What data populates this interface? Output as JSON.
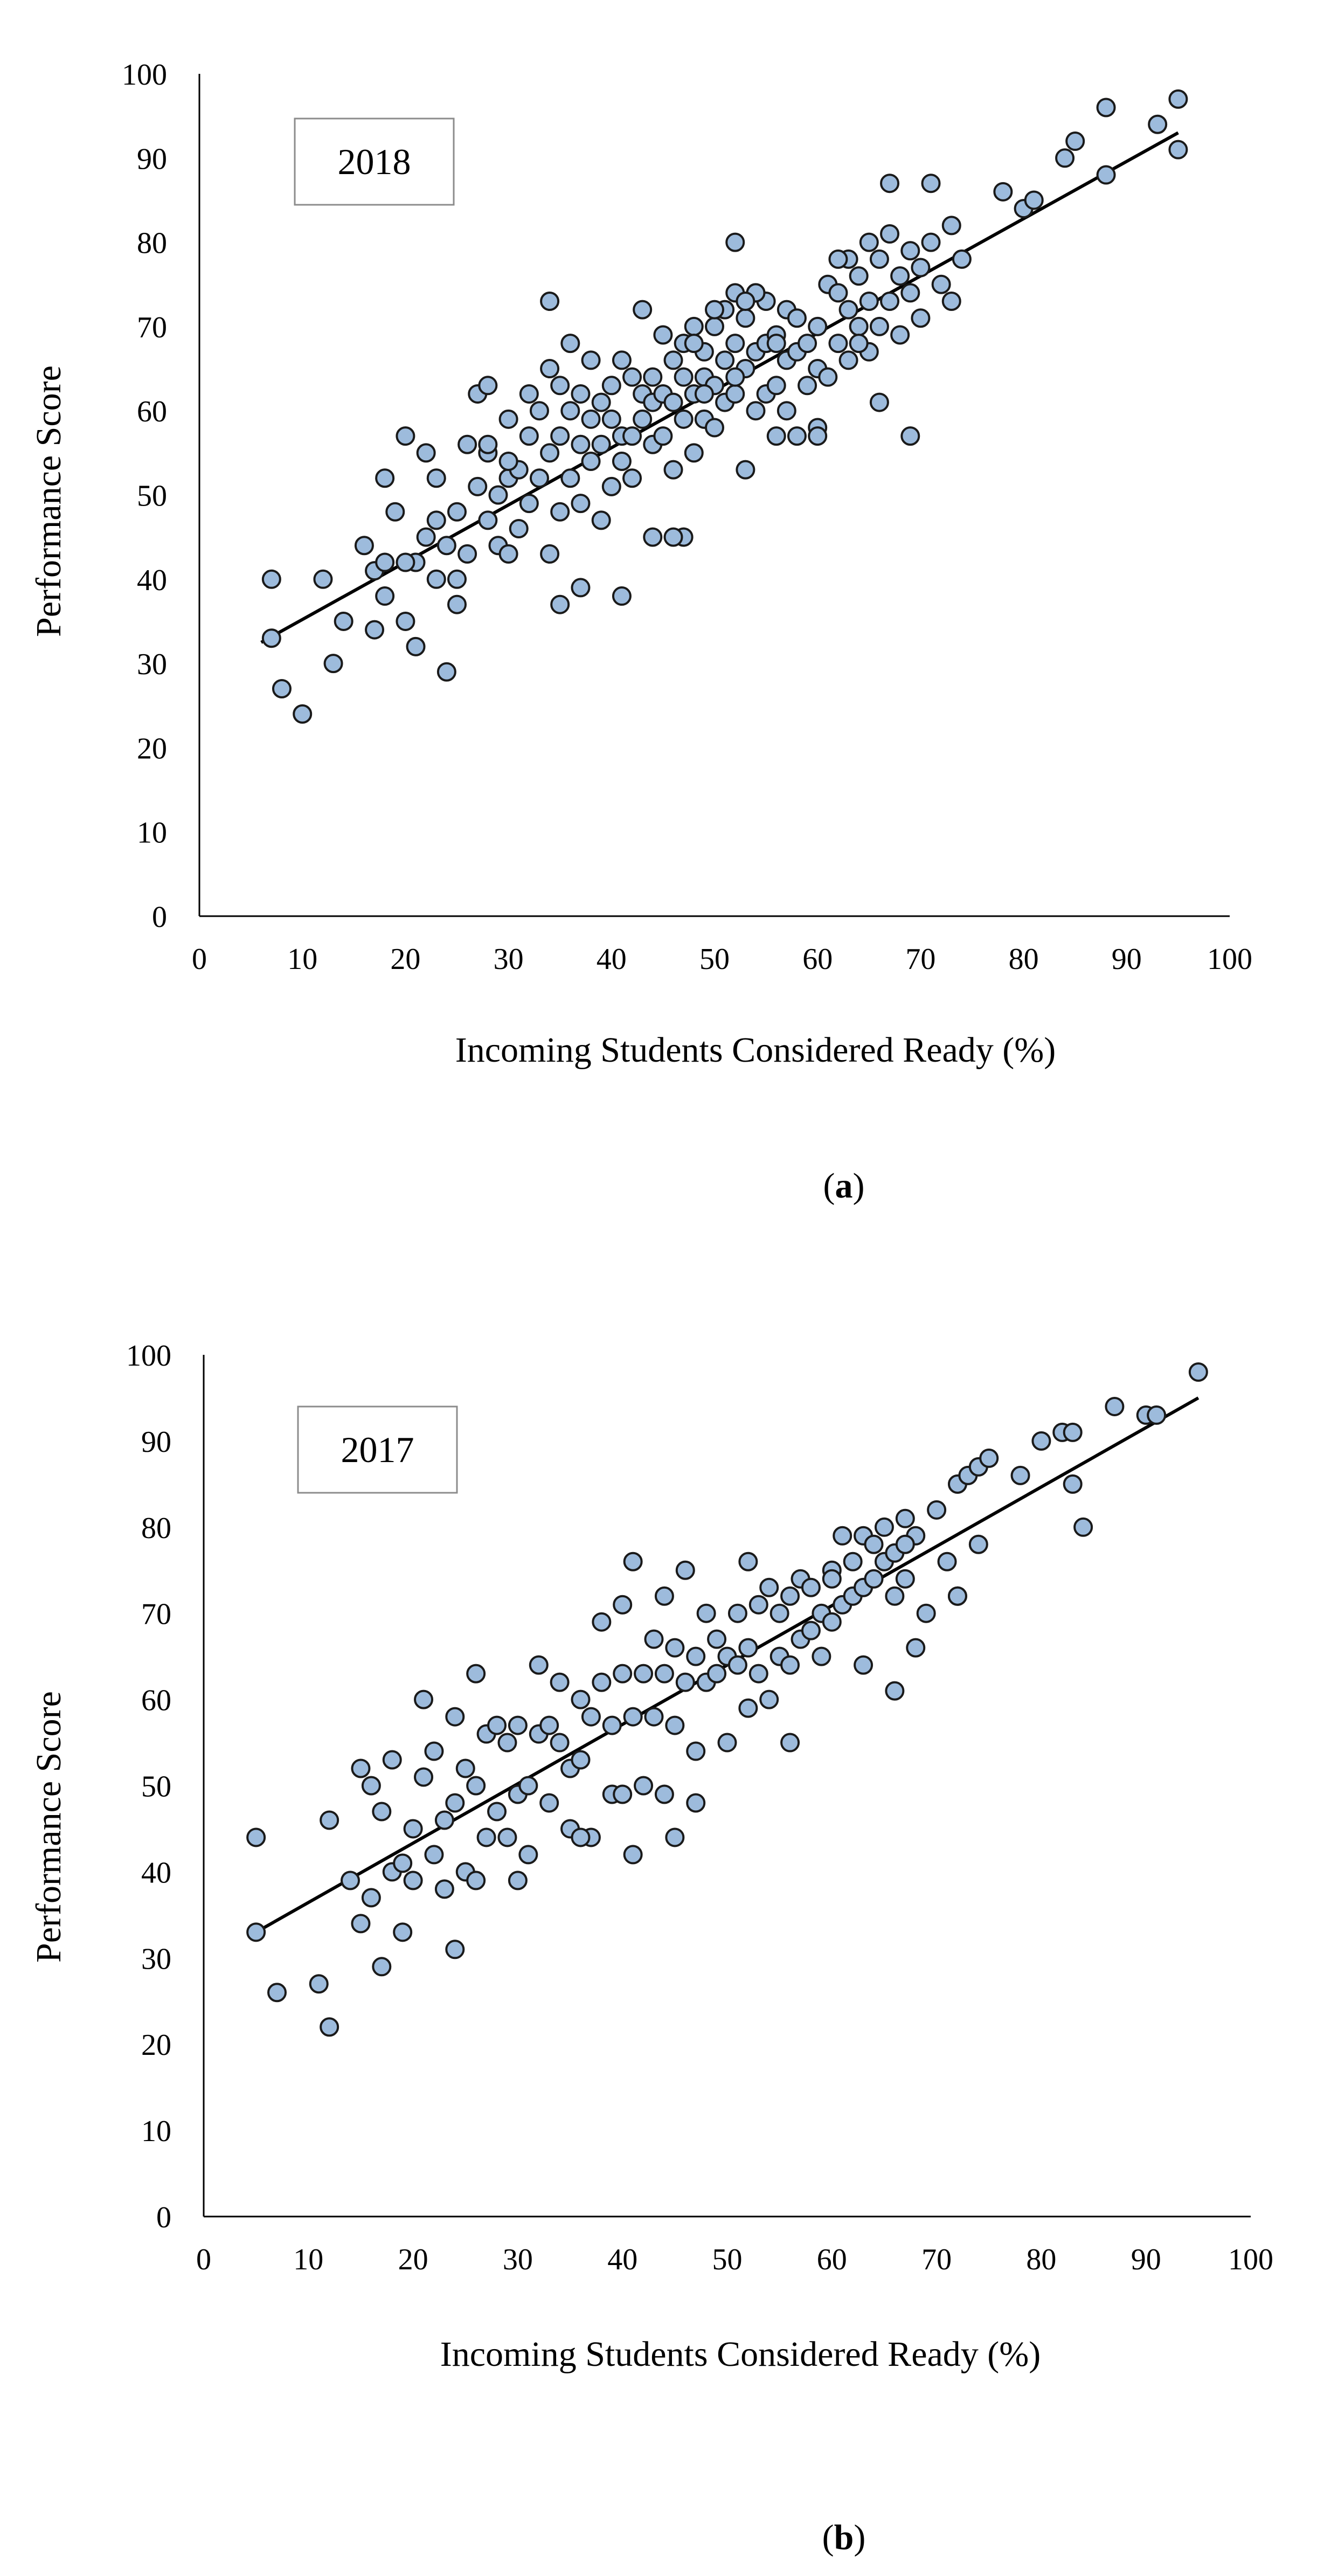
{
  "chart_data": [
    {
      "type": "scatter",
      "panel_label": "a",
      "year_label": "2018",
      "xlabel": "Incoming Students Considered Ready (%)",
      "ylabel": "Performance Score",
      "xlim": [
        0,
        100
      ],
      "ylim": [
        0,
        100
      ],
      "xticks": [
        0,
        10,
        20,
        30,
        40,
        50,
        60,
        70,
        80,
        90,
        100
      ],
      "yticks": [
        0,
        10,
        20,
        30,
        40,
        50,
        60,
        70,
        80,
        90,
        100
      ],
      "trendline": {
        "x": [
          6,
          95
        ],
        "y": [
          32.5,
          93
        ]
      },
      "points": {
        "x": [
          7,
          7,
          8,
          10,
          12,
          13,
          14,
          16,
          17,
          17,
          18,
          18,
          19,
          20,
          20,
          21,
          21,
          22,
          22,
          23,
          23,
          23,
          24,
          24,
          25,
          25,
          25,
          26,
          26,
          27,
          27,
          28,
          28,
          28,
          29,
          29,
          30,
          30,
          30,
          31,
          31,
          32,
          32,
          32,
          33,
          33,
          34,
          34,
          34,
          35,
          35,
          35,
          36,
          36,
          36,
          37,
          37,
          37,
          38,
          38,
          38,
          39,
          39,
          39,
          40,
          40,
          40,
          41,
          41,
          41,
          42,
          42,
          42,
          43,
          43,
          44,
          44,
          44,
          45,
          45,
          45,
          46,
          46,
          46,
          47,
          47,
          47,
          48,
          48,
          48,
          49,
          49,
          49,
          50,
          50,
          50,
          51,
          51,
          51,
          52,
          52,
          52,
          53,
          53,
          54,
          54,
          54,
          55,
          55,
          55,
          56,
          56,
          56,
          57,
          57,
          57,
          58,
          58,
          59,
          59,
          60,
          60,
          60,
          61,
          61,
          62,
          62,
          63,
          63,
          63,
          64,
          64,
          65,
          65,
          65,
          66,
          66,
          67,
          67,
          68,
          68,
          69,
          69,
          70,
          70,
          71,
          72,
          73,
          73,
          74,
          78,
          80,
          81,
          84,
          85,
          88,
          88,
          93,
          95,
          95,
          35,
          41,
          34,
          37,
          20,
          18,
          44,
          47,
          62,
          60,
          58,
          66,
          67,
          71,
          54,
          52,
          30,
          28,
          43,
          46,
          53,
          49,
          56,
          64,
          69,
          48,
          50,
          53,
          52
        ],
        "y": [
          33,
          40,
          27,
          24,
          40,
          30,
          35,
          44,
          34,
          41,
          38,
          52,
          48,
          35,
          57,
          32,
          42,
          55,
          45,
          52,
          40,
          47,
          29,
          44,
          40,
          48,
          37,
          43,
          56,
          51,
          62,
          47,
          55,
          63,
          50,
          44,
          59,
          52,
          43,
          53,
          46,
          57,
          62,
          49,
          60,
          52,
          65,
          73,
          55,
          63,
          48,
          57,
          68,
          52,
          60,
          56,
          49,
          62,
          59,
          54,
          66,
          47,
          61,
          56,
          51,
          59,
          63,
          57,
          54,
          66,
          64,
          57,
          52,
          59,
          62,
          61,
          56,
          64,
          57,
          62,
          69,
          53,
          61,
          66,
          59,
          64,
          68,
          55,
          62,
          70,
          59,
          64,
          67,
          58,
          63,
          70,
          61,
          66,
          72,
          62,
          68,
          74,
          65,
          71,
          60,
          67,
          74,
          62,
          68,
          73,
          63,
          69,
          57,
          66,
          72,
          60,
          67,
          71,
          63,
          68,
          58,
          65,
          70,
          64,
          75,
          68,
          74,
          66,
          72,
          78,
          70,
          76,
          67,
          73,
          80,
          70,
          78,
          73,
          81,
          69,
          76,
          74,
          79,
          71,
          77,
          80,
          75,
          73,
          82,
          78,
          86,
          84,
          85,
          90,
          92,
          88,
          96,
          94,
          91,
          97,
          37,
          38,
          43,
          39,
          42,
          42,
          45,
          45,
          78,
          57,
          57,
          61,
          87,
          87,
          74,
          80,
          54,
          56,
          72,
          45,
          53,
          62,
          68,
          68,
          57,
          68,
          72,
          73,
          64
        ]
      }
    },
    {
      "type": "scatter",
      "panel_label": "b",
      "year_label": "2017",
      "xlabel": "Incoming Students Considered Ready (%)",
      "ylabel": "Performance Score",
      "xlim": [
        0,
        100
      ],
      "ylim": [
        0,
        100
      ],
      "xticks": [
        0,
        10,
        20,
        30,
        40,
        50,
        60,
        70,
        80,
        90,
        100
      ],
      "yticks": [
        0,
        10,
        20,
        30,
        40,
        50,
        60,
        70,
        80,
        90,
        100
      ],
      "trendline": {
        "x": [
          5,
          95
        ],
        "y": [
          33,
          95
        ]
      },
      "points": {
        "x": [
          5,
          5,
          7,
          11,
          12,
          12,
          14,
          15,
          15,
          16,
          16,
          17,
          17,
          18,
          18,
          19,
          19,
          20,
          20,
          21,
          21,
          22,
          22,
          23,
          23,
          24,
          24,
          25,
          25,
          26,
          26,
          27,
          27,
          28,
          28,
          29,
          29,
          30,
          30,
          31,
          31,
          32,
          32,
          33,
          33,
          34,
          34,
          35,
          35,
          36,
          36,
          37,
          37,
          38,
          38,
          39,
          39,
          40,
          40,
          41,
          41,
          42,
          42,
          43,
          43,
          44,
          44,
          45,
          45,
          46,
          46,
          47,
          47,
          48,
          48,
          49,
          49,
          50,
          50,
          51,
          51,
          52,
          52,
          53,
          53,
          54,
          54,
          55,
          55,
          56,
          56,
          57,
          57,
          58,
          58,
          59,
          59,
          60,
          60,
          61,
          61,
          62,
          62,
          63,
          63,
          64,
          64,
          65,
          65,
          66,
          66,
          67,
          67,
          68,
          68,
          69,
          70,
          71,
          72,
          72,
          73,
          74,
          74,
          75,
          78,
          80,
          82,
          83,
          83,
          84,
          87,
          90,
          91,
          95,
          24,
          26,
          41,
          30,
          36,
          40,
          45,
          47,
          56,
          66,
          63,
          72,
          67,
          60,
          52,
          44
        ],
        "y": [
          44,
          33,
          26,
          27,
          22,
          46,
          39,
          34,
          52,
          37,
          50,
          29,
          47,
          40,
          53,
          41,
          33,
          45,
          39,
          51,
          60,
          42,
          54,
          46,
          38,
          48,
          58,
          40,
          52,
          63,
          50,
          56,
          44,
          47,
          57,
          44,
          55,
          49,
          57,
          42,
          50,
          56,
          64,
          48,
          57,
          55,
          62,
          45,
          52,
          60,
          53,
          44,
          58,
          69,
          62,
          49,
          57,
          71,
          63,
          58,
          76,
          50,
          63,
          67,
          58,
          72,
          63,
          66,
          57,
          62,
          75,
          54,
          65,
          62,
          70,
          63,
          67,
          55,
          65,
          64,
          70,
          59,
          66,
          63,
          71,
          60,
          73,
          65,
          70,
          64,
          72,
          67,
          74,
          68,
          73,
          70,
          65,
          75,
          69,
          71,
          79,
          72,
          76,
          73,
          79,
          74,
          78,
          80,
          76,
          61,
          77,
          74,
          81,
          66,
          79,
          70,
          82,
          76,
          85,
          72,
          86,
          78,
          87,
          88,
          86,
          90,
          91,
          85,
          91,
          80,
          94,
          93,
          93,
          98,
          31,
          39,
          42,
          39,
          44,
          49,
          44,
          48,
          55,
          72,
          64,
          72,
          78,
          74,
          76,
          49
        ]
      }
    }
  ],
  "captions": [
    "(a)",
    "(b)"
  ]
}
